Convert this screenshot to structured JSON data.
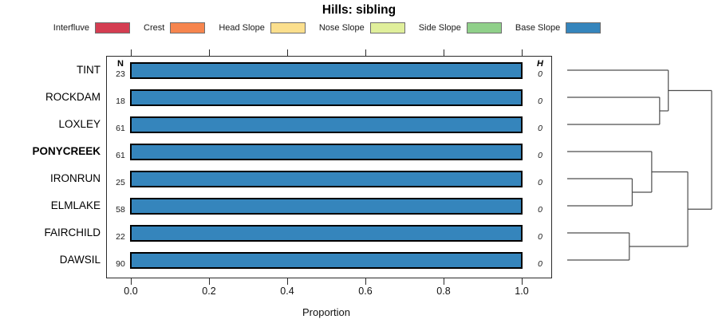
{
  "title": "Hills: sibling",
  "columns": {
    "n_header": "N",
    "h_header": "H"
  },
  "legend": {
    "items": [
      {
        "label": "Interfluve",
        "color": "#d43d51"
      },
      {
        "label": "Crest",
        "color": "#f6854e"
      },
      {
        "label": "Head Slope",
        "color": "#fbdf8d"
      },
      {
        "label": "Nose Slope",
        "color": "#e0ef9b"
      },
      {
        "label": "Side Slope",
        "color": "#90d08a"
      },
      {
        "label": "Base Slope",
        "color": "#3585bc"
      }
    ]
  },
  "chart_data": {
    "type": "bar",
    "orientation": "horizontal",
    "title": "Hills: sibling",
    "xlabel": "Proportion",
    "xlim": [
      0,
      1
    ],
    "xtick_labels": [
      "0.0",
      "0.2",
      "0.4",
      "0.6",
      "0.8",
      "1.0"
    ],
    "xtick_values": [
      0.0,
      0.2,
      0.4,
      0.6,
      0.8,
      1.0
    ],
    "bar_color": "#3585bc",
    "bar_category": "Base Slope",
    "categories": [
      "TINT",
      "ROCKDAM",
      "LOXLEY",
      "PONYCREEK",
      "IRONRUN",
      "ELMLAKE",
      "FAIRCHILD",
      "DAWSIL"
    ],
    "rows": [
      {
        "name": "TINT",
        "n": "23",
        "h": "0",
        "proportion": 1.0,
        "emphasis": false
      },
      {
        "name": "ROCKDAM",
        "n": "18",
        "h": "0",
        "proportion": 1.0,
        "emphasis": false
      },
      {
        "name": "LOXLEY",
        "n": "61",
        "h": "0",
        "proportion": 1.0,
        "emphasis": false
      },
      {
        "name": "PONYCREEK",
        "n": "61",
        "h": "0",
        "proportion": 1.0,
        "emphasis": true
      },
      {
        "name": "IRONRUN",
        "n": "25",
        "h": "0",
        "proportion": 1.0,
        "emphasis": false
      },
      {
        "name": "ELMLAKE",
        "n": "58",
        "h": "0",
        "proportion": 1.0,
        "emphasis": false
      },
      {
        "name": "FAIRCHILD",
        "n": "22",
        "h": "0",
        "proportion": 1.0,
        "emphasis": false
      },
      {
        "name": "DAWSIL",
        "n": "90",
        "h": "0",
        "proportion": 1.0,
        "emphasis": false
      }
    ],
    "dendrogram": {
      "relative_heights": true,
      "tree": {
        "height": 1.0,
        "children": [
          {
            "height": 0.7,
            "children": [
              {
                "leaf": "TINT"
              },
              {
                "height": 0.64,
                "children": [
                  {
                    "leaf": "ROCKDAM"
                  },
                  {
                    "leaf": "LOXLEY"
                  }
                ]
              }
            ]
          },
          {
            "height": 0.835,
            "children": [
              {
                "height": 0.585,
                "children": [
                  {
                    "leaf": "PONYCREEK"
                  },
                  {
                    "height": 0.45,
                    "children": [
                      {
                        "leaf": "IRONRUN"
                      },
                      {
                        "leaf": "ELMLAKE"
                      }
                    ]
                  }
                ]
              },
              {
                "height": 0.43,
                "children": [
                  {
                    "leaf": "FAIRCHILD"
                  },
                  {
                    "leaf": "DAWSIL"
                  }
                ]
              }
            ]
          }
        ]
      }
    }
  }
}
